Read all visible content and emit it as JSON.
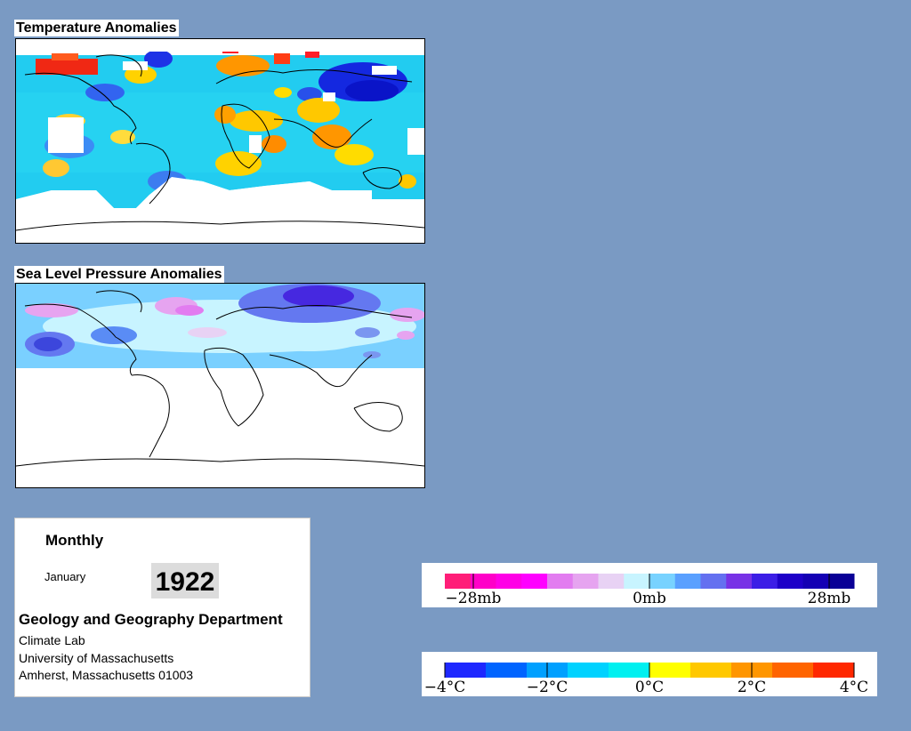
{
  "temperature_map": {
    "title": "Temperature Anomalies"
  },
  "pressure_map": {
    "title": "Sea Level Pressure Anomalies"
  },
  "info": {
    "period": "Monthly",
    "month": "January",
    "year": "1922",
    "department": "Geology and Geography Department",
    "lab": "Climate Lab",
    "university": "University of Massachusetts",
    "address": "Amherst, Massachusetts 01003"
  },
  "pressure_legend": {
    "colors": [
      "#ff1e78",
      "#ff00c8",
      "#ff00e6",
      "#ff00ff",
      "#e27cf0",
      "#e6a4f0",
      "#e8d2f4",
      "#c8f4ff",
      "#78d2ff",
      "#5aa0ff",
      "#6470f0",
      "#7832e6",
      "#3c1ee6",
      "#1e00c8",
      "#1400b4",
      "#0a0096"
    ],
    "labels": [
      "−28mb",
      "0mb",
      "28mb"
    ]
  },
  "temperature_legend": {
    "colors": [
      "#1e28ff",
      "#0064ff",
      "#00a0ff",
      "#00d2ff",
      "#00f0f0",
      "#ffff00",
      "#ffc800",
      "#ff9600",
      "#ff6400",
      "#ff2800"
    ],
    "labels": [
      "−4°C",
      "−2°C",
      "0°C",
      "2°C",
      "4°C"
    ]
  }
}
